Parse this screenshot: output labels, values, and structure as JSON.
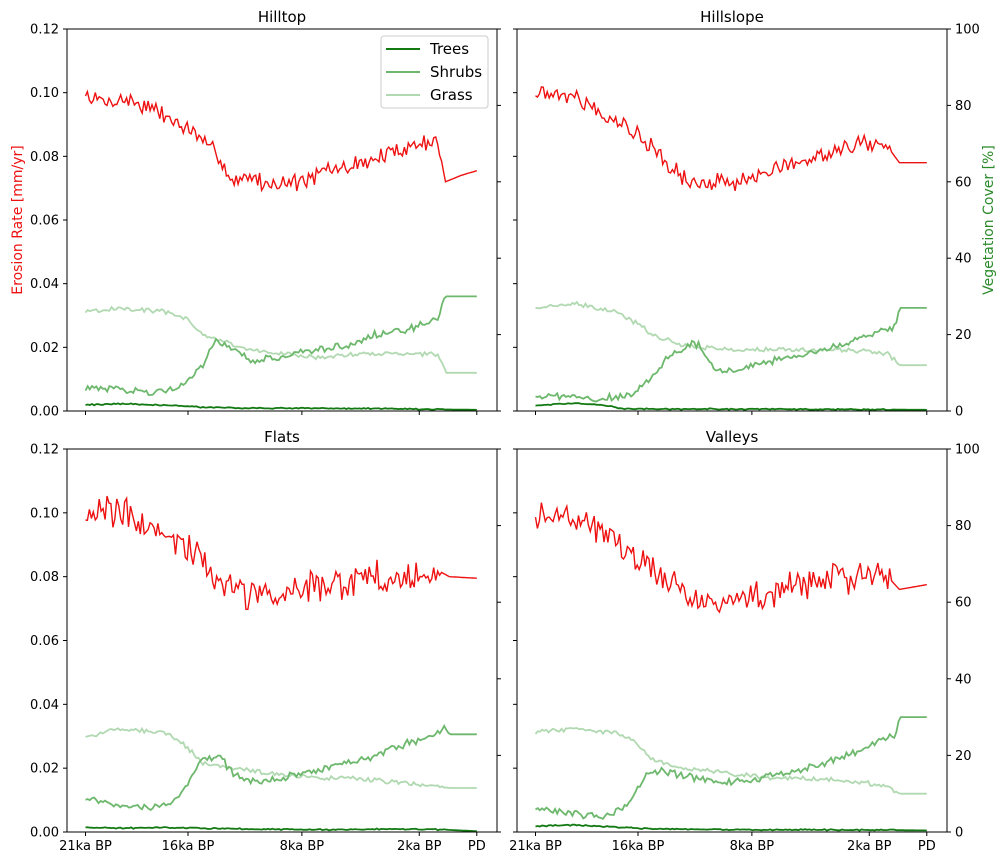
{
  "figure": {
    "y_left_label": "Erosion Rate [mm/yr]",
    "y_right_label": "Vegetation Cover [%]",
    "colors": {
      "erosion": "#ee1111",
      "trees": "#137a13",
      "shrubs": "#6db86d",
      "grass": "#b1d9b1",
      "left_label": "#ee1111",
      "right_label": "#2a8a2a"
    },
    "legend": [
      "Trees",
      "Shrubs",
      "Grass"
    ],
    "x_ticks": [
      "21ka BP",
      "16ka BP",
      "8ka BP",
      "2ka BP",
      "PD"
    ],
    "y_left_ticks": [
      "0.00",
      "0.02",
      "0.04",
      "0.06",
      "0.08",
      "0.10",
      "0.12"
    ],
    "y_right_ticks": [
      "0",
      "20",
      "40",
      "60",
      "80",
      "100"
    ]
  },
  "chart_data": [
    {
      "type": "line",
      "title": "Hilltop",
      "x_categories": [
        "21ka BP",
        "16ka BP",
        "8ka BP",
        "2ka BP",
        "PD"
      ],
      "ylim_left": [
        0,
        0.12
      ],
      "ylim_right": [
        0,
        100
      ],
      "erosion_keypoints": [
        [
          0,
          0.099
        ],
        [
          0.05,
          0.097
        ],
        [
          0.1,
          0.098
        ],
        [
          0.15,
          0.096
        ],
        [
          0.2,
          0.093
        ],
        [
          0.24,
          0.09
        ],
        [
          0.28,
          0.087
        ],
        [
          0.31,
          0.083
        ],
        [
          0.34,
          0.081
        ],
        [
          0.36,
          0.075
        ],
        [
          0.38,
          0.072
        ],
        [
          0.42,
          0.074
        ],
        [
          0.46,
          0.071
        ],
        [
          0.5,
          0.072
        ],
        [
          0.54,
          0.072
        ],
        [
          0.58,
          0.073
        ],
        [
          0.62,
          0.076
        ],
        [
          0.66,
          0.076
        ],
        [
          0.7,
          0.078
        ],
        [
          0.74,
          0.079
        ],
        [
          0.78,
          0.081
        ],
        [
          0.82,
          0.083
        ],
        [
          0.86,
          0.084
        ],
        [
          0.88,
          0.085
        ],
        [
          0.9,
          0.085
        ],
        [
          0.92,
          0.072
        ],
        [
          0.96,
          0.074
        ],
        [
          1,
          0.0755
        ]
      ],
      "series": [
        {
          "name": "Trees",
          "keypoints": [
            [
              0,
              1.6
            ],
            [
              0.1,
              1.9
            ],
            [
              0.2,
              1.5
            ],
            [
              0.3,
              1.0
            ],
            [
              0.4,
              0.8
            ],
            [
              0.6,
              0.7
            ],
            [
              0.8,
              0.6
            ],
            [
              0.92,
              0.4
            ],
            [
              1,
              0.3
            ]
          ]
        },
        {
          "name": "Shrubs",
          "keypoints": [
            [
              0,
              6
            ],
            [
              0.1,
              5.5
            ],
            [
              0.18,
              5
            ],
            [
              0.25,
              7
            ],
            [
              0.3,
              12
            ],
            [
              0.33,
              18
            ],
            [
              0.38,
              16
            ],
            [
              0.42,
              13
            ],
            [
              0.5,
              14
            ],
            [
              0.58,
              16
            ],
            [
              0.66,
              17
            ],
            [
              0.74,
              20
            ],
            [
              0.82,
              21
            ],
            [
              0.9,
              24
            ],
            [
              0.92,
              30
            ],
            [
              1,
              30
            ]
          ]
        },
        {
          "name": "Grass",
          "keypoints": [
            [
              0,
              26
            ],
            [
              0.1,
              27
            ],
            [
              0.2,
              26
            ],
            [
              0.26,
              24
            ],
            [
              0.3,
              20
            ],
            [
              0.36,
              18
            ],
            [
              0.42,
              16
            ],
            [
              0.5,
              15
            ],
            [
              0.6,
              14
            ],
            [
              0.7,
              15
            ],
            [
              0.8,
              15
            ],
            [
              0.9,
              15
            ],
            [
              0.92,
              10
            ],
            [
              1,
              10
            ]
          ]
        }
      ]
    },
    {
      "type": "line",
      "title": "Hillslope",
      "x_categories": [
        "21ka BP",
        "16ka BP",
        "8ka BP",
        "2ka BP",
        "PD"
      ],
      "ylim_left": [
        0,
        0.12
      ],
      "ylim_right": [
        0,
        100
      ],
      "erosion_keypoints": [
        [
          0,
          0.1
        ],
        [
          0.05,
          0.1
        ],
        [
          0.1,
          0.099
        ],
        [
          0.15,
          0.096
        ],
        [
          0.2,
          0.092
        ],
        [
          0.25,
          0.088
        ],
        [
          0.3,
          0.083
        ],
        [
          0.34,
          0.077
        ],
        [
          0.38,
          0.073
        ],
        [
          0.42,
          0.071
        ],
        [
          0.46,
          0.072
        ],
        [
          0.5,
          0.071
        ],
        [
          0.55,
          0.073
        ],
        [
          0.6,
          0.075
        ],
        [
          0.65,
          0.077
        ],
        [
          0.7,
          0.079
        ],
        [
          0.75,
          0.081
        ],
        [
          0.8,
          0.083
        ],
        [
          0.85,
          0.084
        ],
        [
          0.9,
          0.083
        ],
        [
          0.93,
          0.078
        ],
        [
          1,
          0.078
        ]
      ],
      "series": [
        {
          "name": "Trees",
          "keypoints": [
            [
              0,
              1.5
            ],
            [
              0.1,
              2
            ],
            [
              0.18,
              1.5
            ],
            [
              0.22,
              0.6
            ],
            [
              0.4,
              0.5
            ],
            [
              0.6,
              0.5
            ],
            [
              0.8,
              0.4
            ],
            [
              1,
              0.3
            ]
          ]
        },
        {
          "name": "Shrubs",
          "keypoints": [
            [
              0,
              4
            ],
            [
              0.1,
              3.5
            ],
            [
              0.2,
              3.5
            ],
            [
              0.25,
              5
            ],
            [
              0.3,
              9
            ],
            [
              0.34,
              14
            ],
            [
              0.38,
              16
            ],
            [
              0.4,
              18
            ],
            [
              0.42,
              17
            ],
            [
              0.46,
              10
            ],
            [
              0.52,
              11
            ],
            [
              0.6,
              13
            ],
            [
              0.7,
              15
            ],
            [
              0.8,
              18
            ],
            [
              0.88,
              21
            ],
            [
              0.92,
              22
            ],
            [
              0.93,
              27
            ],
            [
              1,
              27
            ]
          ]
        },
        {
          "name": "Grass",
          "keypoints": [
            [
              0,
              27
            ],
            [
              0.1,
              28
            ],
            [
              0.2,
              26
            ],
            [
              0.26,
              23
            ],
            [
              0.3,
              20
            ],
            [
              0.35,
              18
            ],
            [
              0.4,
              17
            ],
            [
              0.5,
              16
            ],
            [
              0.6,
              16
            ],
            [
              0.7,
              16
            ],
            [
              0.8,
              16
            ],
            [
              0.9,
              15
            ],
            [
              0.93,
              12
            ],
            [
              1,
              12
            ]
          ]
        }
      ]
    },
    {
      "type": "line",
      "title": "Flats",
      "x_categories": [
        "21ka BP",
        "16ka BP",
        "8ka BP",
        "2ka BP",
        "PD"
      ],
      "ylim_left": [
        0,
        0.12
      ],
      "ylim_right": [
        0,
        100
      ],
      "erosion_keypoints": [
        [
          0,
          0.101
        ],
        [
          0.05,
          0.1
        ],
        [
          0.1,
          0.099
        ],
        [
          0.15,
          0.097
        ],
        [
          0.2,
          0.093
        ],
        [
          0.25,
          0.089
        ],
        [
          0.3,
          0.085
        ],
        [
          0.34,
          0.08
        ],
        [
          0.38,
          0.076
        ],
        [
          0.42,
          0.074
        ],
        [
          0.46,
          0.073
        ],
        [
          0.5,
          0.074
        ],
        [
          0.56,
          0.076
        ],
        [
          0.62,
          0.077
        ],
        [
          0.7,
          0.079
        ],
        [
          0.78,
          0.08
        ],
        [
          0.85,
          0.081
        ],
        [
          0.9,
          0.082
        ],
        [
          0.93,
          0.08
        ],
        [
          1,
          0.0795
        ]
      ],
      "series": [
        {
          "name": "Trees",
          "keypoints": [
            [
              0,
              1.2
            ],
            [
              0.1,
              1
            ],
            [
              0.2,
              1.2
            ],
            [
              0.3,
              1
            ],
            [
              0.4,
              0.8
            ],
            [
              0.6,
              0.6
            ],
            [
              0.8,
              0.8
            ],
            [
              0.92,
              0.6
            ],
            [
              1,
              0.2
            ]
          ]
        },
        {
          "name": "Shrubs",
          "keypoints": [
            [
              0,
              9
            ],
            [
              0.08,
              7
            ],
            [
              0.16,
              6.5
            ],
            [
              0.22,
              8
            ],
            [
              0.26,
              12
            ],
            [
              0.3,
              19
            ],
            [
              0.34,
              20
            ],
            [
              0.38,
              15
            ],
            [
              0.42,
              13
            ],
            [
              0.5,
              14
            ],
            [
              0.58,
              16
            ],
            [
              0.66,
              18
            ],
            [
              0.74,
              20
            ],
            [
              0.82,
              23
            ],
            [
              0.88,
              25
            ],
            [
              0.92,
              27
            ],
            [
              0.93,
              25.5
            ],
            [
              1,
              25.5
            ]
          ]
        },
        {
          "name": "Grass",
          "keypoints": [
            [
              0,
              25
            ],
            [
              0.1,
              27
            ],
            [
              0.2,
              26
            ],
            [
              0.25,
              23
            ],
            [
              0.3,
              18
            ],
            [
              0.36,
              17
            ],
            [
              0.42,
              16
            ],
            [
              0.5,
              15
            ],
            [
              0.6,
              14
            ],
            [
              0.7,
              14
            ],
            [
              0.8,
              13
            ],
            [
              0.9,
              12
            ],
            [
              0.93,
              11.5
            ],
            [
              1,
              11.5
            ]
          ]
        }
      ]
    },
    {
      "type": "line",
      "title": "Valleys",
      "x_categories": [
        "21ka BP",
        "16ka BP",
        "8ka BP",
        "2ka BP",
        "PD"
      ],
      "ylim_left": [
        0,
        0.12
      ],
      "ylim_right": [
        0,
        100
      ],
      "erosion_keypoints": [
        [
          0,
          0.099
        ],
        [
          0.05,
          0.1
        ],
        [
          0.1,
          0.099
        ],
        [
          0.15,
          0.096
        ],
        [
          0.2,
          0.092
        ],
        [
          0.25,
          0.087
        ],
        [
          0.3,
          0.083
        ],
        [
          0.35,
          0.078
        ],
        [
          0.4,
          0.074
        ],
        [
          0.45,
          0.072
        ],
        [
          0.5,
          0.072
        ],
        [
          0.55,
          0.074
        ],
        [
          0.6,
          0.075
        ],
        [
          0.65,
          0.077
        ],
        [
          0.7,
          0.078
        ],
        [
          0.75,
          0.079
        ],
        [
          0.8,
          0.08
        ],
        [
          0.85,
          0.081
        ],
        [
          0.9,
          0.08
        ],
        [
          0.93,
          0.076
        ],
        [
          1,
          0.0775
        ]
      ],
      "series": [
        {
          "name": "Trees",
          "keypoints": [
            [
              0,
              1.5
            ],
            [
              0.1,
              1.8
            ],
            [
              0.2,
              1.3
            ],
            [
              0.3,
              0.8
            ],
            [
              0.5,
              0.6
            ],
            [
              0.7,
              0.6
            ],
            [
              0.9,
              0.5
            ],
            [
              1,
              0.4
            ]
          ]
        },
        {
          "name": "Shrubs",
          "keypoints": [
            [
              0,
              6
            ],
            [
              0.08,
              5
            ],
            [
              0.16,
              4
            ],
            [
              0.2,
              5
            ],
            [
              0.25,
              9
            ],
            [
              0.28,
              15
            ],
            [
              0.32,
              16
            ],
            [
              0.36,
              15
            ],
            [
              0.42,
              14
            ],
            [
              0.5,
              13
            ],
            [
              0.58,
              14
            ],
            [
              0.66,
              16
            ],
            [
              0.74,
              18
            ],
            [
              0.82,
              21
            ],
            [
              0.88,
              24
            ],
            [
              0.92,
              25
            ],
            [
              0.93,
              30
            ],
            [
              1,
              30
            ]
          ]
        },
        {
          "name": "Grass",
          "keypoints": [
            [
              0,
              26
            ],
            [
              0.1,
              27
            ],
            [
              0.2,
              26
            ],
            [
              0.25,
              24
            ],
            [
              0.3,
              19
            ],
            [
              0.36,
              17
            ],
            [
              0.44,
              16
            ],
            [
              0.52,
              15
            ],
            [
              0.62,
              14
            ],
            [
              0.72,
              14
            ],
            [
              0.82,
              13
            ],
            [
              0.9,
              12
            ],
            [
              0.93,
              10
            ],
            [
              1,
              10
            ]
          ]
        }
      ]
    }
  ]
}
